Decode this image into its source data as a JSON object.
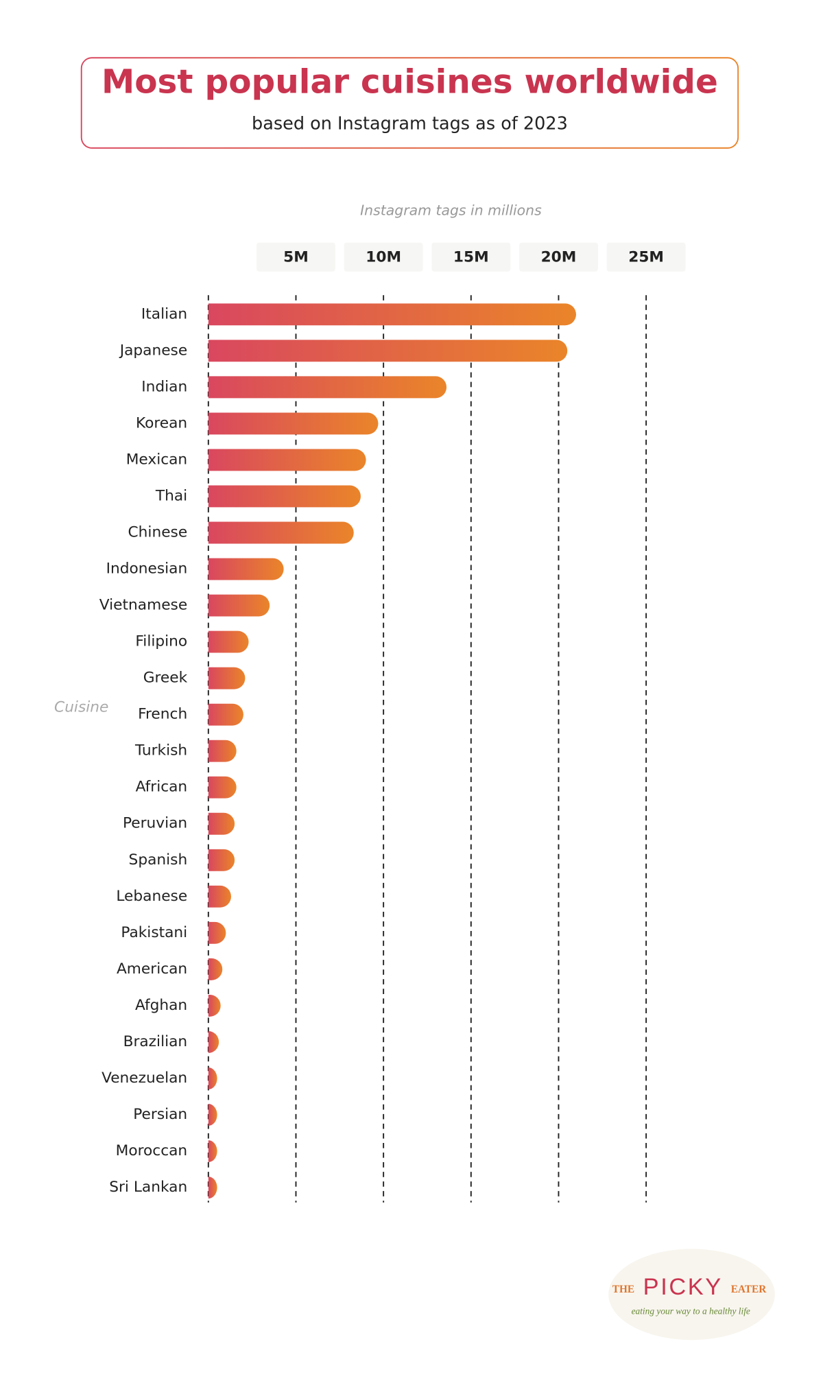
{
  "chart_data": {
    "type": "bar",
    "orientation": "horizontal",
    "title": "Most popular cuisines worldwide",
    "subtitle": "based on Instagram tags as of 2023",
    "x_label": "Instagram tags in millions",
    "y_label": "Cuisine",
    "categories": [
      "Italian",
      "Japanese",
      "Indian",
      "Korean",
      "Mexican",
      "Thai",
      "Chinese",
      "Indonesian",
      "Vietnamese",
      "Filipino",
      "Greek",
      "French",
      "Turkish",
      "African",
      "Peruvian",
      "Spanish",
      "Lebanese",
      "Pakistani",
      "American",
      "Afghan",
      "Brazilian",
      "Venezuelan",
      "Persian",
      "Moroccan",
      "Sri Lankan"
    ],
    "values": [
      21.0,
      20.5,
      13.6,
      9.7,
      9.0,
      8.7,
      8.3,
      4.3,
      3.5,
      2.3,
      2.1,
      2.0,
      1.6,
      1.6,
      1.5,
      1.5,
      1.3,
      1.0,
      0.8,
      0.7,
      0.6,
      0.5,
      0.5,
      0.5,
      0.5
    ],
    "gradient": [
      "#d9475f",
      "#ea8529"
    ],
    "xlim": [
      0,
      25
    ],
    "xticks": [
      {
        "value": 5,
        "label": "5M"
      },
      {
        "value": 10,
        "label": "10M"
      },
      {
        "value": 15,
        "label": "15M"
      },
      {
        "value": 20,
        "label": "20M"
      },
      {
        "value": 25,
        "label": "25M"
      }
    ],
    "grid": true
  },
  "logo": {
    "the": "THE",
    "name": "PICKY",
    "eater": "EATER",
    "tagline": "eating your way to a healthy life"
  }
}
